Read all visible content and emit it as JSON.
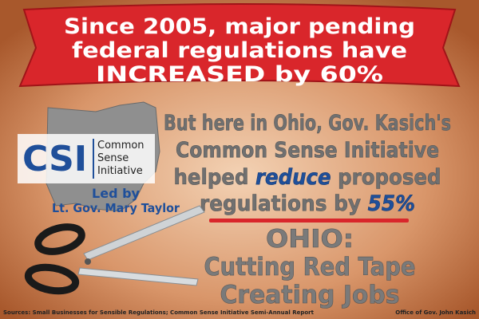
{
  "banner": {
    "lines": [
      "Since 2005, major pending",
      "federal regulations have",
      "INCREASED by 60%"
    ]
  },
  "logo": {
    "acronym": "CSI",
    "name_lines": [
      "Common",
      "Sense",
      "Initiative"
    ],
    "led_by": "Led by",
    "leader": "Lt. Gov. Mary Taylor"
  },
  "message": {
    "lines": [
      [
        "But here in Ohio, Gov. Kasich's"
      ],
      [
        "Common Sense Initiative"
      ],
      [
        "helped ",
        "reduce",
        " proposed"
      ],
      [
        "regulations by ",
        "55%"
      ]
    ]
  },
  "slogan": {
    "lines": [
      "OHIO:",
      "Cutting Red Tape",
      "Creating Jobs"
    ]
  },
  "footer": {
    "sources": "Sources: Small Businesses for Sensible Regulations; Common Sense Initiative Semi-Annual Report",
    "credit": "Office of Gov. John Kasich"
  }
}
